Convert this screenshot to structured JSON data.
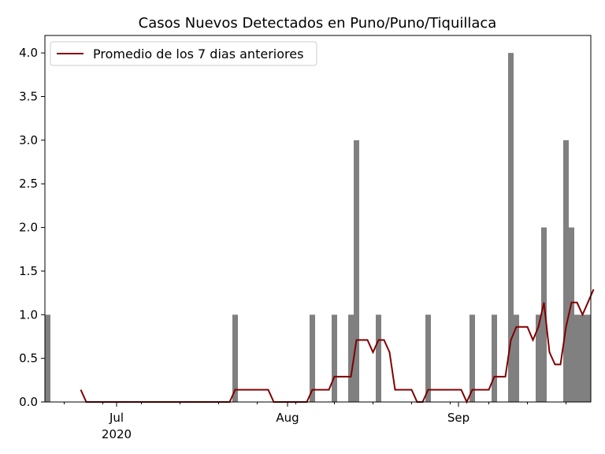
{
  "chart_data": {
    "type": "bar",
    "title": "Casos Nuevos Detectados en Puno/Puno/Tiquillaca",
    "xlabel": "",
    "ylabel": "",
    "start_date": "2020-06-18",
    "end_date": "2020-09-24",
    "ylim": [
      0,
      4.2
    ],
    "yticks": [
      "0.0",
      "0.5",
      "1.0",
      "1.5",
      "2.0",
      "2.5",
      "3.0",
      "3.5",
      "4.0"
    ],
    "xticks": [
      {
        "date": "2020-07-01",
        "label": "Jul",
        "sublabel": "2020"
      },
      {
        "date": "2020-08-01",
        "label": "Aug",
        "sublabel": ""
      },
      {
        "date": "2020-09-01",
        "label": "Sep",
        "sublabel": ""
      }
    ],
    "bar_color": "#808080",
    "bars": [
      {
        "date": "2020-06-18",
        "value": 1
      },
      {
        "date": "2020-07-22",
        "value": 1
      },
      {
        "date": "2020-08-05",
        "value": 1
      },
      {
        "date": "2020-08-09",
        "value": 1
      },
      {
        "date": "2020-08-12",
        "value": 1
      },
      {
        "date": "2020-08-13",
        "value": 3
      },
      {
        "date": "2020-08-17",
        "value": 1
      },
      {
        "date": "2020-08-26",
        "value": 1
      },
      {
        "date": "2020-09-03",
        "value": 1
      },
      {
        "date": "2020-09-07",
        "value": 1
      },
      {
        "date": "2020-09-10",
        "value": 4
      },
      {
        "date": "2020-09-11",
        "value": 1
      },
      {
        "date": "2020-09-15",
        "value": 1
      },
      {
        "date": "2020-09-16",
        "value": 2
      },
      {
        "date": "2020-09-20",
        "value": 3
      },
      {
        "date": "2020-09-21",
        "value": 2
      },
      {
        "date": "2020-09-22",
        "value": 1
      },
      {
        "date": "2020-09-23",
        "value": 1
      },
      {
        "date": "2020-09-24",
        "value": 1
      }
    ],
    "series": [
      {
        "name": "Promedio de los 7 dias anteriores",
        "color": "#800000",
        "points": [
          [
            "2020-06-24",
            0.14
          ],
          [
            "2020-06-25",
            0.0
          ],
          [
            "2020-07-21",
            0.0
          ],
          [
            "2020-07-22",
            0.14
          ],
          [
            "2020-07-28",
            0.14
          ],
          [
            "2020-07-29",
            0.0
          ],
          [
            "2020-08-04",
            0.0
          ],
          [
            "2020-08-05",
            0.14
          ],
          [
            "2020-08-08",
            0.14
          ],
          [
            "2020-08-09",
            0.29
          ],
          [
            "2020-08-12",
            0.29
          ],
          [
            "2020-08-13",
            0.71
          ],
          [
            "2020-08-15",
            0.71
          ],
          [
            "2020-08-16",
            0.57
          ],
          [
            "2020-08-17",
            0.71
          ],
          [
            "2020-08-18",
            0.71
          ],
          [
            "2020-08-19",
            0.57
          ],
          [
            "2020-08-20",
            0.14
          ],
          [
            "2020-08-23",
            0.14
          ],
          [
            "2020-08-24",
            0.0
          ],
          [
            "2020-08-25",
            0.0
          ],
          [
            "2020-08-26",
            0.14
          ],
          [
            "2020-09-01",
            0.14
          ],
          [
            "2020-09-02",
            0.0
          ],
          [
            "2020-09-03",
            0.14
          ],
          [
            "2020-09-06",
            0.14
          ],
          [
            "2020-09-07",
            0.29
          ],
          [
            "2020-09-09",
            0.29
          ],
          [
            "2020-09-10",
            0.71
          ],
          [
            "2020-09-11",
            0.86
          ],
          [
            "2020-09-13",
            0.86
          ],
          [
            "2020-09-14",
            0.71
          ],
          [
            "2020-09-15",
            0.86
          ],
          [
            "2020-09-16",
            1.14
          ],
          [
            "2020-09-17",
            0.57
          ],
          [
            "2020-09-18",
            0.43
          ],
          [
            "2020-09-19",
            0.43
          ],
          [
            "2020-09-20",
            0.86
          ],
          [
            "2020-09-21",
            1.14
          ],
          [
            "2020-09-22",
            1.14
          ],
          [
            "2020-09-23",
            1.0
          ],
          [
            "2020-09-25",
            1.29
          ]
        ]
      }
    ],
    "legend": {
      "position": "top-left",
      "label": "Promedio de los 7 dias anteriores"
    }
  }
}
